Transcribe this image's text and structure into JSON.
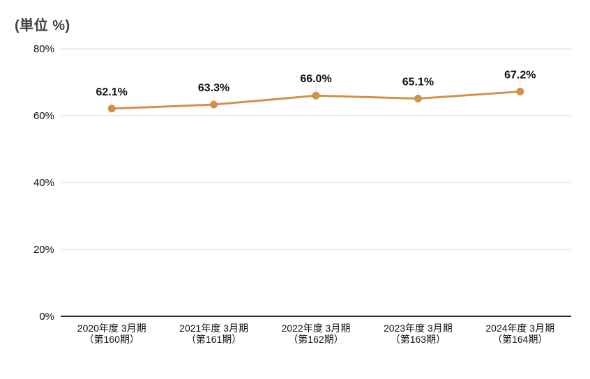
{
  "chart_data": {
    "type": "line",
    "unit_label": "(単位 %)",
    "categories": [
      {
        "line1": "2020年度 3月期",
        "line2": "（第160期）"
      },
      {
        "line1": "2021年度 3月期",
        "line2": "（第161期）"
      },
      {
        "line1": "2022年度 3月期",
        "line2": "（第162期）"
      },
      {
        "line1": "2023年度 3月期",
        "line2": "（第163期）"
      },
      {
        "line1": "2024年度 3月期",
        "line2": "（第164期）"
      }
    ],
    "values": [
      62.1,
      63.3,
      66.0,
      65.1,
      67.2
    ],
    "data_labels": [
      "62.1%",
      "63.3%",
      "66.0%",
      "65.1%",
      "67.2%"
    ],
    "y_ticks": [
      0,
      20,
      40,
      60,
      80
    ],
    "y_tick_labels": [
      "0%",
      "20%",
      "40%",
      "60%",
      "80%"
    ],
    "ylim": [
      0,
      80
    ],
    "grid": true,
    "legend_position": "none",
    "colors": {
      "line": "#D2914B",
      "marker": "#D2914B",
      "grid": "#DADADA",
      "axis": "#2B2B2B",
      "text": "#111111",
      "leader": "#E9E9E9",
      "background": "#FFFFFF"
    }
  }
}
